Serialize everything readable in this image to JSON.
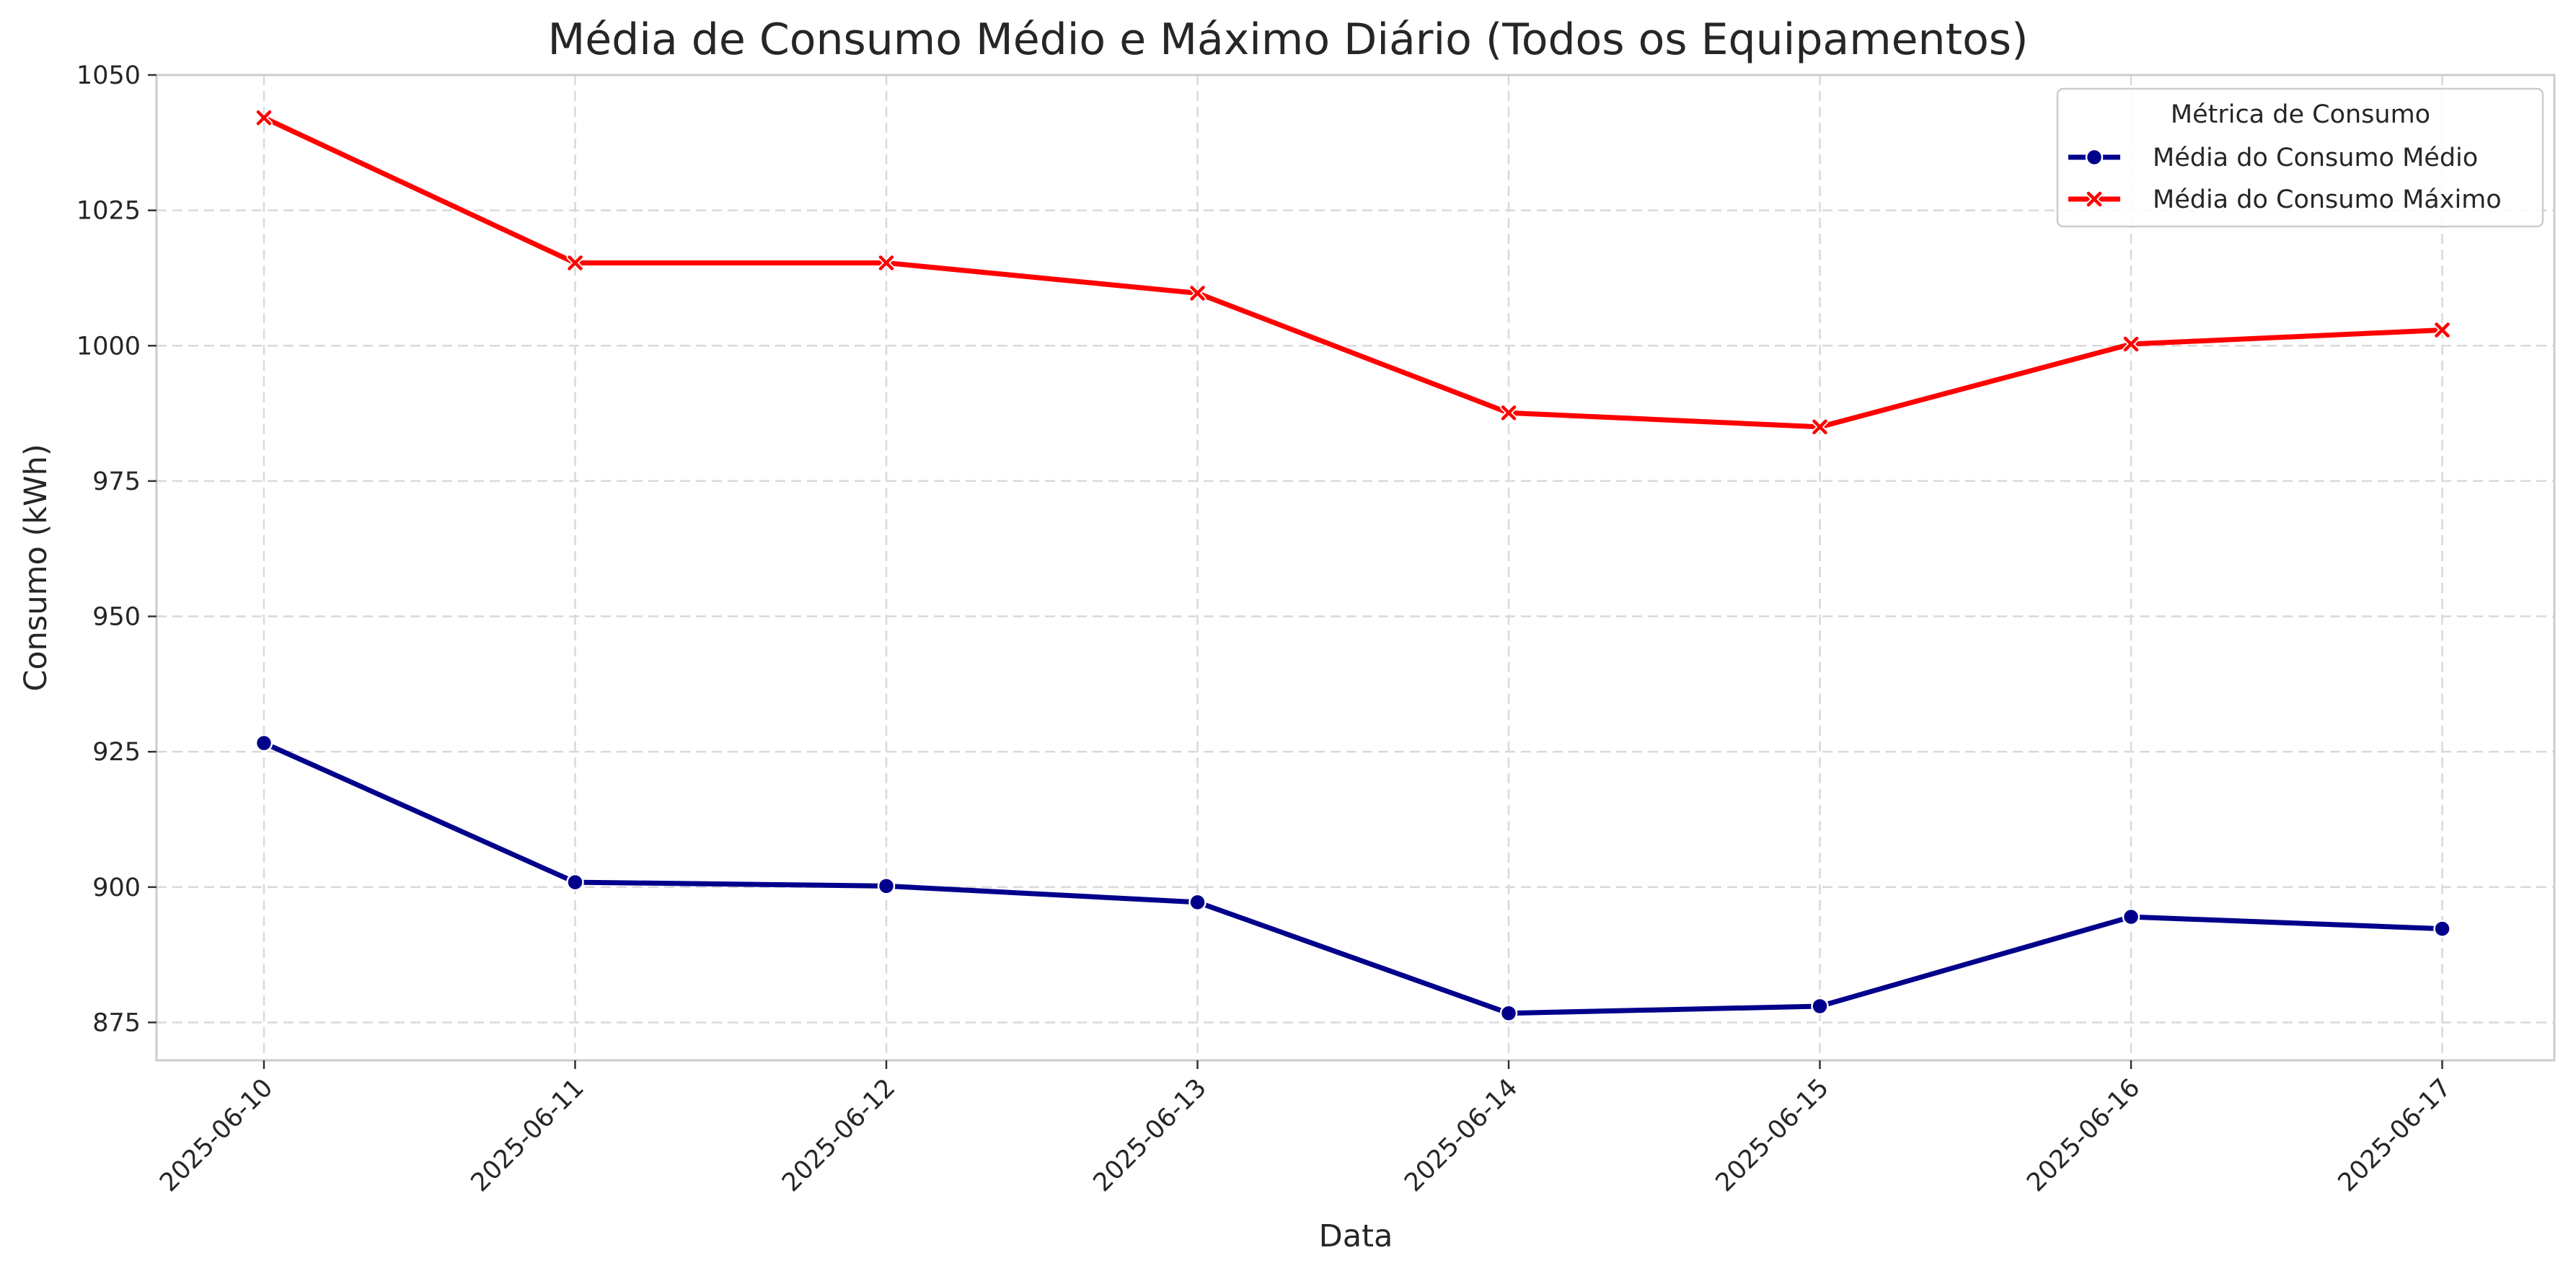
{
  "chart_data": {
    "type": "line",
    "title": "Média de Consumo Médio e Máximo Diário (Todos os Equipamentos)",
    "xlabel": "Data",
    "ylabel": "Consumo (kWh)",
    "x": [
      "2025-06-10",
      "2025-06-11",
      "2025-06-12",
      "2025-06-13",
      "2025-06-14",
      "2025-06-15",
      "2025-06-16",
      "2025-06-17"
    ],
    "ylim": [
      868,
      1050
    ],
    "yticks": [
      875,
      900,
      925,
      950,
      975,
      1000,
      1025,
      1050
    ],
    "grid": true,
    "legend": {
      "title": "Métrica de Consumo",
      "placement": "top-right"
    },
    "series": [
      {
        "name": "Média do Consumo Médio",
        "color": "#00008b",
        "marker": "circle",
        "values": [
          926.6,
          900.9,
          900.2,
          897.2,
          876.7,
          878.0,
          894.5,
          892.3
        ]
      },
      {
        "name": "Média do Consumo Máximo",
        "color": "#ff0000",
        "marker": "x",
        "values": [
          1042.1,
          1015.3,
          1015.3,
          1009.7,
          987.6,
          985.0,
          1000.3,
          1002.9
        ]
      }
    ]
  }
}
